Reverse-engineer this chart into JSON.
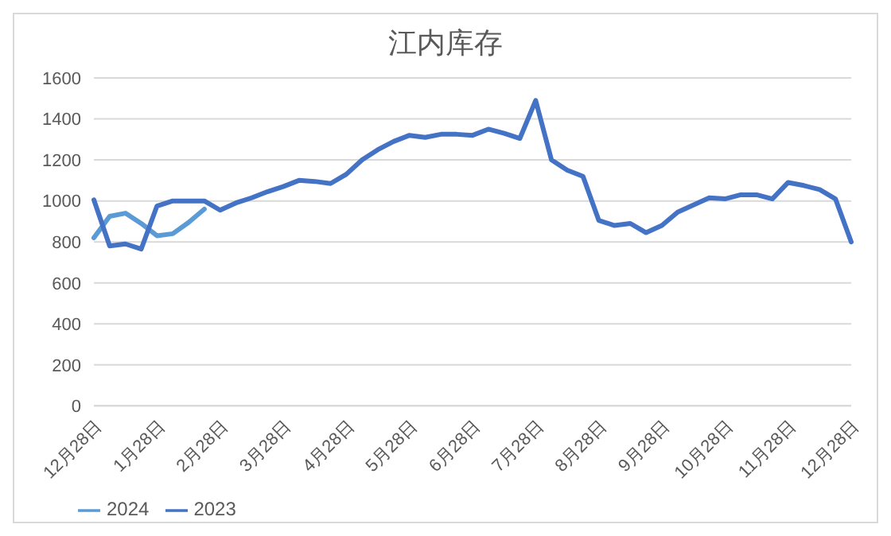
{
  "chart_data": {
    "type": "line",
    "title": "江内库存",
    "categories": [
      "12月28日",
      null,
      null,
      null,
      "1月28日",
      null,
      null,
      null,
      "2月28日",
      null,
      null,
      null,
      "3月28日",
      null,
      null,
      null,
      "4月28日",
      null,
      null,
      null,
      "5月28日",
      null,
      null,
      null,
      "6月28日",
      null,
      null,
      null,
      "7月28日",
      null,
      null,
      null,
      "8月28日",
      null,
      null,
      null,
      "9月28日",
      null,
      null,
      null,
      "10月28日",
      null,
      null,
      null,
      "11月28日",
      null,
      null,
      null,
      "12月28日"
    ],
    "series": [
      {
        "name": "2024",
        "color": "#5b9bd5",
        "values": [
          820,
          925,
          940,
          890,
          830,
          840,
          895,
          960,
          null,
          null,
          null,
          null,
          null,
          null,
          null,
          null,
          null,
          null,
          null,
          null,
          null,
          null,
          null,
          null,
          null,
          null,
          null,
          null,
          null,
          null,
          null,
          null,
          null,
          null,
          null,
          null,
          null,
          null,
          null,
          null,
          null,
          null,
          null,
          null,
          null,
          null,
          null,
          null,
          null
        ]
      },
      {
        "name": "2023",
        "color": "#4472c4",
        "values": [
          1005,
          780,
          790,
          765,
          975,
          1000,
          1000,
          1000,
          955,
          990,
          1015,
          1045,
          1070,
          1100,
          1095,
          1085,
          1130,
          1200,
          1250,
          1290,
          1320,
          1310,
          1325,
          1325,
          1320,
          1350,
          1330,
          1305,
          1490,
          1200,
          1150,
          1120,
          905,
          880,
          890,
          845,
          880,
          945,
          980,
          1015,
          1010,
          1030,
          1030,
          1010,
          1090,
          1075,
          1055,
          1010,
          800
        ]
      }
    ],
    "ylim": [
      0,
      1600
    ],
    "yticks": [
      0,
      200,
      400,
      600,
      800,
      1000,
      1200,
      1400,
      1600
    ],
    "grid": "y",
    "legend": "bottom left",
    "marker": "none",
    "line_style": "solid"
  }
}
